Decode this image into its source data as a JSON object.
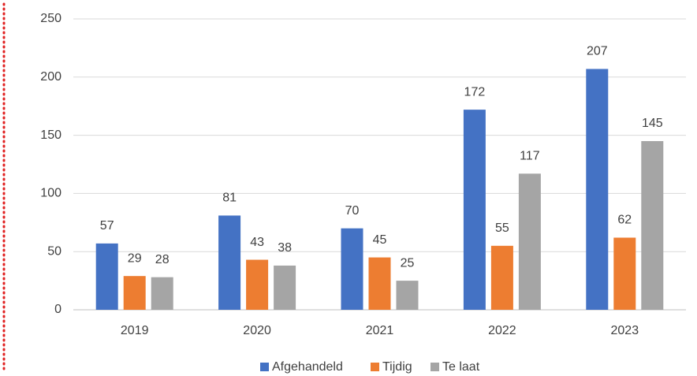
{
  "chart_data": {
    "type": "bar",
    "categories": [
      "2019",
      "2020",
      "2021",
      "2022",
      "2023"
    ],
    "series": [
      {
        "name": "Afgehandeld",
        "color": "#4472c4",
        "values": [
          57,
          81,
          70,
          172,
          207
        ]
      },
      {
        "name": "Tijdig",
        "color": "#ed7d31",
        "values": [
          29,
          43,
          45,
          55,
          62
        ]
      },
      {
        "name": "Te laat",
        "color": "#a5a5a5",
        "values": [
          28,
          38,
          25,
          117,
          145
        ]
      }
    ],
    "ylim": [
      0,
      250
    ],
    "yticks": [
      0,
      50,
      100,
      150,
      200,
      250
    ],
    "grid": true,
    "legend": "bottom"
  }
}
